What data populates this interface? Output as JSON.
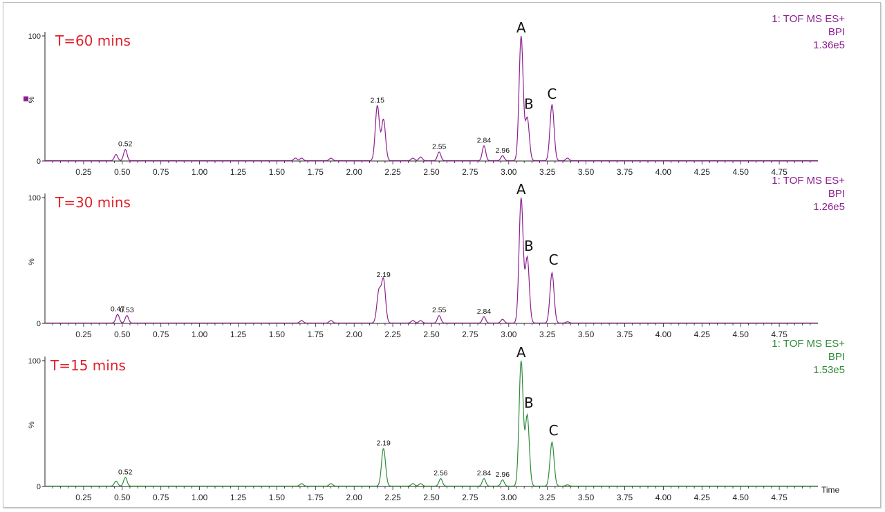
{
  "chart_data": [
    {
      "type": "line",
      "title": "T=60 mins",
      "ylabel": "%",
      "info": [
        "1: TOF MS ES+",
        "BPI",
        "1.36e5"
      ],
      "color": "#8e1f90",
      "xlim": [
        0,
        5.0
      ],
      "ylim": [
        0,
        100
      ],
      "x_ticks": [
        "0.25",
        "0.50",
        "0.75",
        "1.00",
        "1.25",
        "1.50",
        "1.75",
        "2.00",
        "2.25",
        "2.50",
        "2.75",
        "3.00",
        "3.25",
        "3.50",
        "3.75",
        "4.00",
        "4.25",
        "4.50",
        "4.75"
      ],
      "y_ticks": [
        "0",
        "100"
      ],
      "peaks": [
        {
          "x": 0.46,
          "y": 5
        },
        {
          "x": 0.52,
          "y": 9
        },
        {
          "x": 1.62,
          "y": 2
        },
        {
          "x": 1.66,
          "y": 2
        },
        {
          "x": 1.85,
          "y": 2
        },
        {
          "x": 2.15,
          "y": 44
        },
        {
          "x": 2.19,
          "y": 33
        },
        {
          "x": 2.38,
          "y": 2
        },
        {
          "x": 2.43,
          "y": 3
        },
        {
          "x": 2.55,
          "y": 7
        },
        {
          "x": 2.84,
          "y": 12
        },
        {
          "x": 2.96,
          "y": 4
        },
        {
          "x": 3.08,
          "y": 100
        },
        {
          "x": 3.12,
          "y": 34
        },
        {
          "x": 3.28,
          "y": 45
        },
        {
          "x": 3.38,
          "y": 2
        }
      ],
      "peak_labels": [
        {
          "x": 0.52,
          "text": "0.52"
        },
        {
          "x": 2.15,
          "text": "2.15"
        },
        {
          "x": 2.55,
          "text": "2.55"
        },
        {
          "x": 2.84,
          "text": "2.84"
        },
        {
          "x": 2.96,
          "text": "2.96"
        }
      ],
      "annotations": [
        {
          "x": 3.08,
          "y": 100,
          "text": "A"
        },
        {
          "x": 3.13,
          "y": 39,
          "text": "B"
        },
        {
          "x": 3.28,
          "y": 47,
          "text": "C"
        }
      ]
    },
    {
      "type": "line",
      "title": "T=30 mins",
      "ylabel": "%",
      "info": [
        "1: TOF MS ES+",
        "BPI",
        "1.26e5"
      ],
      "color": "#8e1f90",
      "xlim": [
        0,
        5.0
      ],
      "ylim": [
        0,
        100
      ],
      "x_ticks": [
        "0.25",
        "0.50",
        "0.75",
        "1.00",
        "1.25",
        "1.50",
        "1.75",
        "2.00",
        "2.25",
        "2.50",
        "2.75",
        "3.00",
        "3.25",
        "3.50",
        "3.75",
        "4.00",
        "4.25",
        "4.50",
        "4.75"
      ],
      "y_ticks": [
        "0",
        "100"
      ],
      "peaks": [
        {
          "x": 0.47,
          "y": 7
        },
        {
          "x": 0.53,
          "y": 6
        },
        {
          "x": 1.66,
          "y": 2
        },
        {
          "x": 1.85,
          "y": 2
        },
        {
          "x": 2.16,
          "y": 25
        },
        {
          "x": 2.19,
          "y": 34
        },
        {
          "x": 2.38,
          "y": 2
        },
        {
          "x": 2.43,
          "y": 2
        },
        {
          "x": 2.55,
          "y": 6
        },
        {
          "x": 2.84,
          "y": 5
        },
        {
          "x": 2.96,
          "y": 3
        },
        {
          "x": 3.08,
          "y": 100
        },
        {
          "x": 3.12,
          "y": 52
        },
        {
          "x": 3.28,
          "y": 40
        },
        {
          "x": 3.38,
          "y": 1
        }
      ],
      "peak_labels": [
        {
          "x": 0.47,
          "text": "0.47"
        },
        {
          "x": 0.53,
          "text": "0.53"
        },
        {
          "x": 2.19,
          "text": "2.19"
        },
        {
          "x": 2.55,
          "text": "2.55"
        },
        {
          "x": 2.84,
          "text": "2.84"
        }
      ],
      "annotations": [
        {
          "x": 3.08,
          "y": 100,
          "text": "A"
        },
        {
          "x": 3.13,
          "y": 55,
          "text": "B"
        },
        {
          "x": 3.29,
          "y": 44,
          "text": "C"
        }
      ]
    },
    {
      "type": "line",
      "title": "T=15 mins",
      "ylabel": "%",
      "xlabel": "Time",
      "info": [
        "1: TOF MS ES+",
        "BPI",
        "1.53e5"
      ],
      "color": "#2e8b3a",
      "xlim": [
        0,
        5.0
      ],
      "ylim": [
        0,
        100
      ],
      "x_ticks": [
        "0.25",
        "0.50",
        "0.75",
        "1.00",
        "1.25",
        "1.50",
        "1.75",
        "2.00",
        "2.25",
        "2.50",
        "2.75",
        "3.00",
        "3.25",
        "3.50",
        "3.75",
        "4.00",
        "4.25",
        "4.50",
        "4.75"
      ],
      "y_ticks": [
        "0",
        "100"
      ],
      "peaks": [
        {
          "x": 0.46,
          "y": 4
        },
        {
          "x": 0.52,
          "y": 7
        },
        {
          "x": 1.66,
          "y": 2
        },
        {
          "x": 1.85,
          "y": 2
        },
        {
          "x": 2.19,
          "y": 30
        },
        {
          "x": 2.38,
          "y": 2
        },
        {
          "x": 2.43,
          "y": 2
        },
        {
          "x": 2.56,
          "y": 6
        },
        {
          "x": 2.84,
          "y": 6
        },
        {
          "x": 2.96,
          "y": 5
        },
        {
          "x": 3.08,
          "y": 100
        },
        {
          "x": 3.12,
          "y": 56
        },
        {
          "x": 3.28,
          "y": 35
        },
        {
          "x": 3.38,
          "y": 1
        }
      ],
      "peak_labels": [
        {
          "x": 0.52,
          "text": "0.52"
        },
        {
          "x": 2.19,
          "text": "2.19"
        },
        {
          "x": 2.56,
          "text": "2.56"
        },
        {
          "x": 2.84,
          "text": "2.84"
        },
        {
          "x": 2.96,
          "text": "2.96"
        }
      ],
      "annotations": [
        {
          "x": 3.08,
          "y": 100,
          "text": "A"
        },
        {
          "x": 3.13,
          "y": 60,
          "text": "B"
        },
        {
          "x": 3.29,
          "y": 38,
          "text": "C"
        }
      ]
    }
  ]
}
